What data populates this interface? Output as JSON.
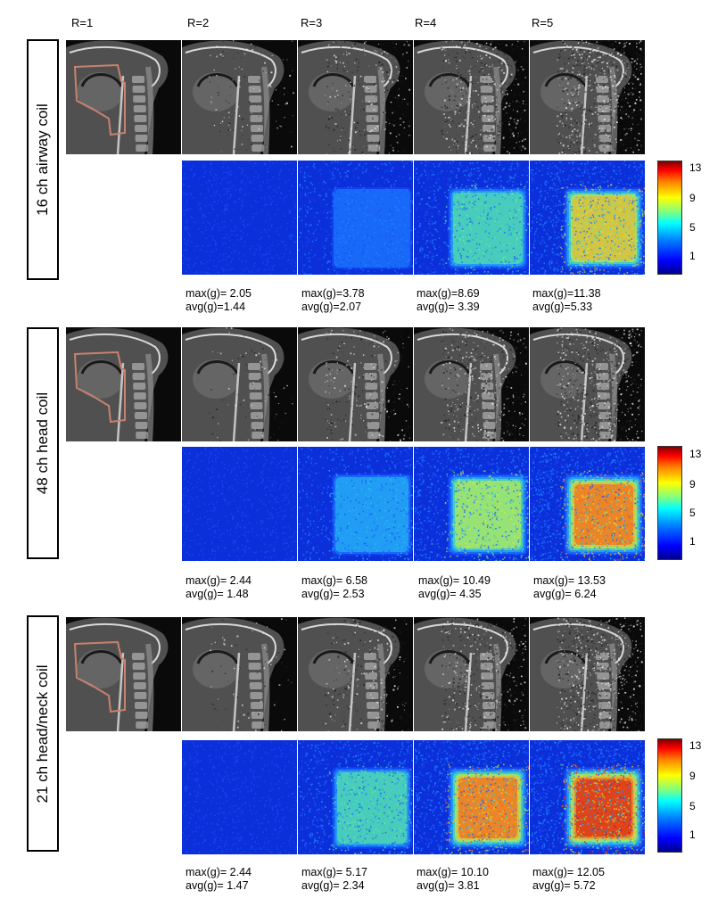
{
  "columns": [
    "R=1",
    "R=2",
    "R=3",
    "R=4",
    "R=5"
  ],
  "coils": [
    {
      "label": "16 ch airway coil",
      "stats": [
        {
          "max": "max(g)= 2.05",
          "avg": "avg(g)=1.44"
        },
        {
          "max": "max(g)=3.78",
          "avg": "avg(g)=2.07"
        },
        {
          "max": "max(g)=8.69",
          "avg": "avg(g)= 3.39"
        },
        {
          "max": "max(g)=11.38",
          "avg": "avg(g)=5.33"
        }
      ],
      "noise_levels": [
        0.0,
        0.15,
        0.35,
        0.6,
        0.85
      ],
      "gmap_levels": [
        0.02,
        0.15,
        0.4,
        0.7
      ]
    },
    {
      "label": "48 ch head coil",
      "stats": [
        {
          "max": "max(g)= 2.44",
          "avg": "avg(g)= 1.48"
        },
        {
          "max": "max(g)= 6.58",
          "avg": "avg(g)= 2.53"
        },
        {
          "max": "max(g)= 10.49",
          "avg": "avg(g)= 4.35"
        },
        {
          "max": "max(g)= 13.53",
          "avg": "avg(g)= 6.24"
        }
      ],
      "noise_levels": [
        0.0,
        0.1,
        0.3,
        0.55,
        0.8
      ],
      "gmap_levels": [
        0.04,
        0.25,
        0.6,
        0.85
      ]
    },
    {
      "label": "21 ch head/neck coil",
      "stats": [
        {
          "max": "max(g)= 2.44",
          "avg": "avg(g)= 1.47"
        },
        {
          "max": "max(g)= 5.17",
          "avg": "avg(g)= 2.34"
        },
        {
          "max": "max(g)= 10.10",
          "avg": "avg(g)= 3.81"
        },
        {
          "max": "max(g)= 12.05",
          "avg": "avg(g)= 5.72"
        }
      ],
      "noise_levels": [
        0.0,
        0.1,
        0.3,
        0.6,
        0.85
      ],
      "gmap_levels": [
        0.04,
        0.45,
        0.75,
        0.95
      ]
    }
  ],
  "colorbar": {
    "ticks": [
      "13",
      "9",
      "5",
      "1"
    ]
  },
  "colors": {
    "roi": "#c8816e",
    "background": "#ffffff"
  }
}
